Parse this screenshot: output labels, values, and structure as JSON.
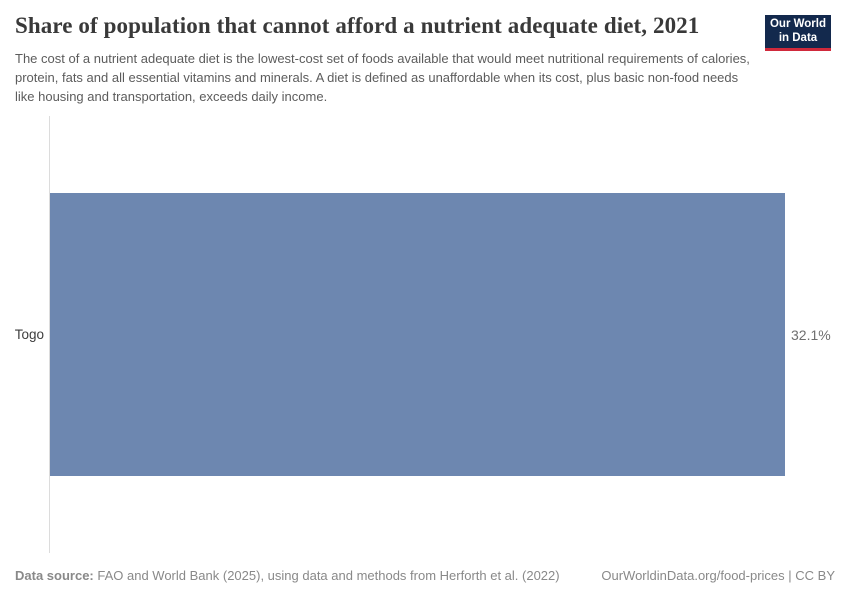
{
  "header": {
    "title": "Share of population that cannot afford a nutrient adequate diet, 2021",
    "subtitle": "The cost of a nutrient adequate diet is the lowest-cost set of foods available that would meet nutritional requirements of calories, protein, fats and all essential vitamins and minerals. A diet is defined as unaffordable when its cost, plus basic non-food needs like housing and transportation, exceeds daily income.",
    "logo": {
      "line1": "Our World",
      "line2": "in Data",
      "bg_color": "#13294d",
      "accent_color": "#d0293b"
    }
  },
  "chart_data": {
    "type": "bar",
    "orientation": "horizontal",
    "title": "Share of population that cannot afford a nutrient adequate diet, 2021",
    "categories": [
      "Togo"
    ],
    "values": [
      32.1
    ],
    "value_labels": [
      "32.1%"
    ],
    "xlabel": "",
    "ylabel": "",
    "xlim": [
      0,
      32.1
    ],
    "grid": false,
    "legend": false,
    "bar_color": "#6d87b0",
    "axis_line_color": "#dcdcdc"
  },
  "footer": {
    "source_label": "Data source:",
    "source_text": "FAO and World Bank (2025), using data and methods from Herforth et al. (2022)",
    "credit": "OurWorldinData.org/food-prices | CC BY"
  }
}
